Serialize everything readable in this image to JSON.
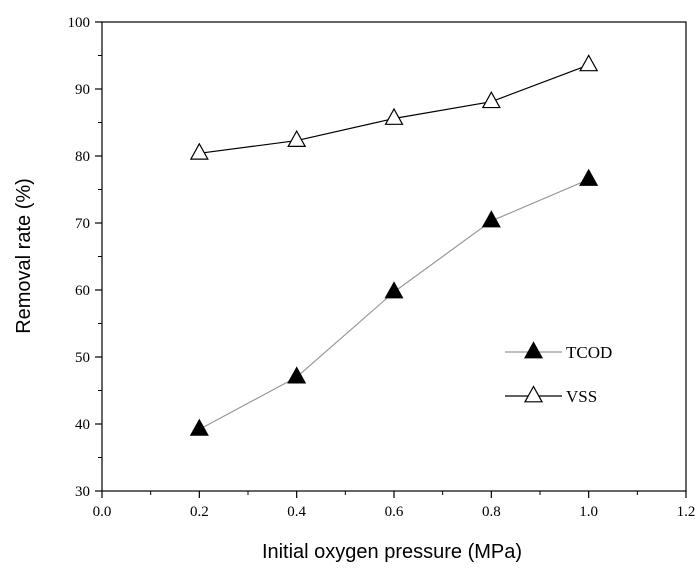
{
  "chart_data": {
    "type": "line",
    "xlabel": "Initial oxygen pressure (MPa)",
    "ylabel": "Removal rate (%)",
    "xlim": [
      0.0,
      1.2
    ],
    "ylim": [
      30,
      100
    ],
    "x_major_ticks": [
      0.0,
      0.2,
      0.4,
      0.6,
      0.8,
      1.0,
      1.2
    ],
    "x_tick_labels": [
      "0.0",
      "0.2",
      "0.4",
      "0.6",
      "0.8",
      "1.0",
      "1.2"
    ],
    "x_minor_ticks": [
      0.1,
      0.3,
      0.5,
      0.7,
      0.9,
      1.1
    ],
    "y_major_ticks": [
      30,
      40,
      50,
      60,
      70,
      80,
      90,
      100
    ],
    "y_tick_labels": [
      "30",
      "40",
      "50",
      "60",
      "70",
      "80",
      "90",
      "100"
    ],
    "y_minor_ticks": [
      35,
      45,
      55,
      65,
      75,
      85,
      95
    ],
    "grid": false,
    "legend_position": "middle-right",
    "x": [
      0.2,
      0.4,
      0.6,
      0.8,
      1.0
    ],
    "series": [
      {
        "name": "TCOD",
        "values": [
          39.2,
          47.0,
          59.7,
          70.3,
          76.5
        ],
        "marker": "filled-triangle",
        "line_color": "#999999",
        "marker_color": "#000000"
      },
      {
        "name": "VSS",
        "values": [
          80.4,
          82.3,
          85.6,
          88.1,
          93.6
        ],
        "marker": "open-triangle",
        "line_color": "#000000",
        "marker_color": "#000000"
      }
    ]
  }
}
